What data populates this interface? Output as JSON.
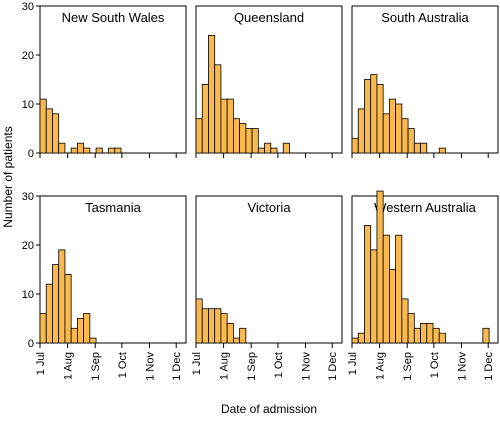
{
  "figure": {
    "ylabel": "Number of patients",
    "xlabel": "Date of admission"
  },
  "chart_data": {
    "type": "bar",
    "xlabel": "Date of admission",
    "ylabel": "Number of patients",
    "ylim": [
      0,
      30
    ],
    "yticks": [
      0,
      10,
      20,
      30
    ],
    "xticks": [
      "1 Jul",
      "1 Aug",
      "1 Sep",
      "1 Oct",
      "1 Nov",
      "1 Dec"
    ],
    "bin_width_days": 7,
    "first_bin_start": "1 Jul",
    "bar_color": "#f9b94e",
    "grid": false,
    "panels": [
      {
        "title": "New South Wales",
        "values": [
          11,
          9,
          8,
          2,
          0,
          1,
          2,
          1,
          0,
          1,
          0,
          1,
          1
        ]
      },
      {
        "title": "Queensland",
        "values": [
          7,
          14,
          24,
          18,
          11,
          11,
          7,
          6,
          5,
          5,
          1,
          2,
          1,
          0,
          2
        ]
      },
      {
        "title": "South Australia",
        "values": [
          3,
          9,
          15,
          16,
          14,
          8,
          11,
          10,
          7,
          5,
          2,
          2,
          0,
          0,
          1
        ]
      },
      {
        "title": "Tasmania",
        "values": [
          6,
          12,
          16,
          19,
          14,
          3,
          5,
          6,
          1
        ]
      },
      {
        "title": "Victoria",
        "values": [
          9,
          7,
          7,
          7,
          6,
          4,
          1,
          3
        ]
      },
      {
        "title": "Western Australia",
        "values": [
          1,
          2,
          24,
          19,
          31,
          22,
          15,
          22,
          9,
          6,
          3,
          4,
          4,
          3,
          2,
          0,
          0,
          0,
          0,
          0,
          0,
          3
        ]
      }
    ]
  }
}
